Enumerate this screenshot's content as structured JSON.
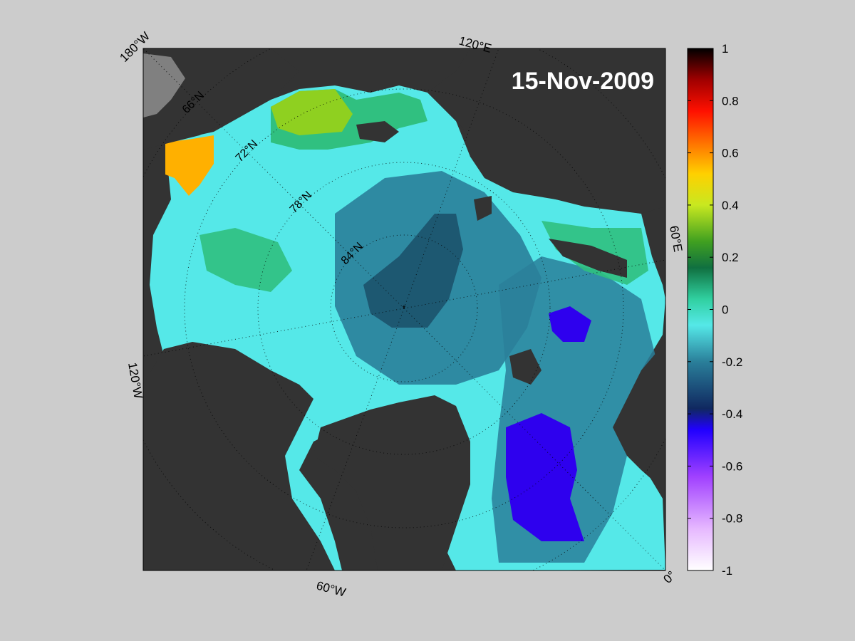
{
  "map": {
    "date": "15-Nov-2009",
    "lon_labels": [
      "180°W",
      "120°E",
      "60°E",
      "0°",
      "60°W",
      "120°W"
    ],
    "lat_labels": [
      "66°N",
      "72°N",
      "78°N",
      "84°N"
    ]
  },
  "colorbar": {
    "ticks": [
      "1",
      "0.8",
      "0.6",
      "0.4",
      "0.2",
      "0",
      "-0.2",
      "-0.4",
      "-0.6",
      "-0.8",
      "-1"
    ],
    "range": [
      -1,
      1
    ]
  },
  "colors": {
    "background": "#cccccc",
    "land": "#333333",
    "missing": "#808080"
  }
}
